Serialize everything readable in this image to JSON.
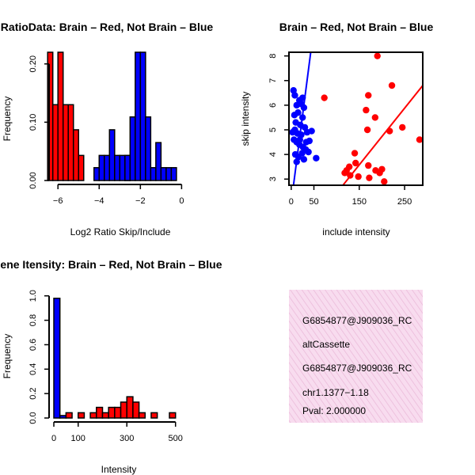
{
  "colors": {
    "red": "#ff0000",
    "blue": "#0000ff",
    "pval": "#8b0000",
    "info_bg": "#f8dcef",
    "info_stripe": "#eab8d8"
  },
  "chart_data": [
    {
      "id": "ratio-hist",
      "type": "bar",
      "title": "RatioData: Brain – Red, Not Brain – Blue",
      "xlabel": "Log2 Ratio Skip/Include",
      "ylabel": "Frequency",
      "xlim": [
        -6.2,
        0.1
      ],
      "ylim": [
        0,
        0.22
      ],
      "xticks": [
        -6,
        -4,
        -2,
        0
      ],
      "xtick_labels": [
        "−6",
        "−4",
        "−2",
        "0"
      ],
      "yticks": [
        0,
        0.1,
        0.2
      ],
      "ytick_labels": [
        "0.00",
        "0.10",
        "0.20"
      ],
      "bin_width": 0.25,
      "series": [
        {
          "name": "Brain",
          "color": "red",
          "bins": [
            [
              -6.25,
              0.22
            ],
            [
              -6.0,
              0.13
            ],
            [
              -5.75,
              0.22
            ],
            [
              -5.5,
              0.13
            ],
            [
              -5.25,
              0.13
            ],
            [
              -5.0,
              0.087
            ],
            [
              -4.75,
              0.043
            ],
            [
              -2.5,
              0.043
            ]
          ]
        },
        {
          "name": "Not Brain",
          "color": "blue",
          "bins": [
            [
              -4.0,
              0.022
            ],
            [
              -3.75,
              0.043
            ],
            [
              -3.5,
              0.043
            ],
            [
              -3.25,
              0.087
            ],
            [
              -3.0,
              0.043
            ],
            [
              -2.75,
              0.043
            ],
            [
              -2.5,
              0.043
            ],
            [
              -2.25,
              0.109
            ],
            [
              -2.0,
              0.22
            ],
            [
              -1.75,
              0.22
            ],
            [
              -1.5,
              0.109
            ],
            [
              -1.25,
              0.022
            ],
            [
              -1.0,
              0.065
            ],
            [
              -0.75,
              0.022
            ],
            [
              -0.5,
              0.022
            ],
            [
              -0.25,
              0.022
            ]
          ]
        }
      ]
    },
    {
      "id": "intensity-scatter",
      "type": "scatter",
      "title": "Brain – Red, Not Brain – Blue",
      "xlabel": "include intensity",
      "ylabel": "skip intensity",
      "xlim": [
        -5,
        290
      ],
      "ylim": [
        2.75,
        8.15
      ],
      "xticks": [
        0,
        50,
        150,
        250
      ],
      "xtick_labels": [
        "0",
        "50",
        "150",
        "250"
      ],
      "yticks": [
        3,
        4,
        5,
        6,
        7,
        8
      ],
      "ytick_labels": [
        "3",
        "4",
        "5",
        "6",
        "7",
        "8"
      ],
      "series": [
        {
          "name": "Brain",
          "color": "red",
          "points": [
            [
              190,
              8.0
            ],
            [
              222,
              6.8
            ],
            [
              73,
              6.3
            ],
            [
              170,
              6.4
            ],
            [
              165,
              5.8
            ],
            [
              185,
              5.5
            ],
            [
              245,
              5.1
            ],
            [
              168,
              5.0
            ],
            [
              217,
              4.95
            ],
            [
              283,
              4.6
            ],
            [
              140,
              4.05
            ],
            [
              128,
              3.5
            ],
            [
              142,
              3.65
            ],
            [
              122,
              3.35
            ],
            [
              130,
              3.15
            ],
            [
              148,
              3.1
            ],
            [
              170,
              3.55
            ],
            [
              172,
              3.05
            ],
            [
              186,
              3.35
            ],
            [
              200,
              3.4
            ],
            [
              195,
              3.25
            ],
            [
              205,
              2.9
            ],
            [
              118,
              3.25
            ]
          ],
          "fit": [
            [
              114,
              2.75
            ],
            [
              290,
              6.8
            ]
          ]
        },
        {
          "name": "Not Brain",
          "color": "blue",
          "points": [
            [
              5,
              6.6
            ],
            [
              8,
              6.4
            ],
            [
              18,
              6.2
            ],
            [
              12,
              6.0
            ],
            [
              22,
              6.05
            ],
            [
              28,
              5.9
            ],
            [
              15,
              5.7
            ],
            [
              25,
              5.5
            ],
            [
              10,
              5.3
            ],
            [
              20,
              5.2
            ],
            [
              30,
              5.1
            ],
            [
              8,
              5.0
            ],
            [
              3,
              4.9
            ],
            [
              14,
              4.85
            ],
            [
              22,
              4.8
            ],
            [
              35,
              4.9
            ],
            [
              45,
              4.95
            ],
            [
              6,
              4.6
            ],
            [
              12,
              4.5
            ],
            [
              18,
              4.4
            ],
            [
              26,
              4.3
            ],
            [
              32,
              4.2
            ],
            [
              9,
              4.0
            ],
            [
              16,
              3.9
            ],
            [
              24,
              4.05
            ],
            [
              38,
              4.1
            ],
            [
              55,
              3.85
            ],
            [
              12,
              3.7
            ],
            [
              28,
              3.8
            ],
            [
              19,
              4.6
            ],
            [
              33,
              4.5
            ],
            [
              40,
              4.55
            ],
            [
              7,
              5.6
            ],
            [
              25,
              6.3
            ]
          ],
          "fit": [
            [
              5,
              2.75
            ],
            [
              43,
              8.15
            ]
          ]
        }
      ]
    },
    {
      "id": "intensity-hist",
      "type": "bar",
      "title": "Gene Itensity: Brain – Red, Not Brain – Blue",
      "xlabel": "Intensity",
      "ylabel": "Frequency",
      "xlim": [
        0,
        540
      ],
      "ylim": [
        0,
        1.05
      ],
      "xticks": [
        0,
        100,
        300,
        500
      ],
      "xtick_labels": [
        "0",
        "100",
        "300",
        "500"
      ],
      "yticks": [
        0,
        0.2,
        0.4,
        0.6,
        0.8,
        1.0
      ],
      "ytick_labels": [
        "0.0",
        "0.2",
        "0.4",
        "0.6",
        "0.8",
        "1.0"
      ],
      "bin_width": 25,
      "series": [
        {
          "name": "Not Brain",
          "color": "blue",
          "bins": [
            [
              25,
              0.98
            ],
            [
              50,
              0.02
            ]
          ]
        },
        {
          "name": "Brain",
          "color": "red",
          "bins": [
            [
              75,
              0.043
            ],
            [
              125,
              0.043
            ],
            [
              175,
              0.043
            ],
            [
              200,
              0.087
            ],
            [
              225,
              0.043
            ],
            [
              250,
              0.087
            ],
            [
              275,
              0.087
            ],
            [
              300,
              0.13
            ],
            [
              325,
              0.174
            ],
            [
              350,
              0.13
            ],
            [
              375,
              0.043
            ],
            [
              425,
              0.043
            ],
            [
              500,
              0.043
            ]
          ]
        }
      ]
    }
  ],
  "info_box": {
    "lines": [
      "G6854877@J909036_RC",
      "altCassette",
      "G6854877@J909036_RC",
      "chr1.1377−1.18"
    ],
    "pval": "Pval: 2.000000"
  }
}
